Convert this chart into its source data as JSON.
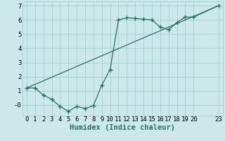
{
  "xlabel": "Humidex (Indice chaleur)",
  "bg_color": "#cce8e8",
  "grid_color": "#aacfcf",
  "line_color": "#2e6e62",
  "xlim": [
    -0.5,
    23.5
  ],
  "ylim": [
    -0.75,
    7.3
  ],
  "yticks": [
    0,
    1,
    2,
    3,
    4,
    5,
    6,
    7
  ],
  "ytick_labels": [
    "-0",
    "1",
    "2",
    "3",
    "4",
    "5",
    "6",
    "7"
  ],
  "xticks": [
    0,
    1,
    2,
    3,
    4,
    5,
    6,
    7,
    8,
    9,
    10,
    11,
    12,
    13,
    14,
    15,
    16,
    17,
    18,
    19,
    20,
    23
  ],
  "curve_x": [
    0,
    1,
    2,
    3,
    4,
    5,
    6,
    7,
    8,
    9,
    10,
    11,
    12,
    13,
    14,
    15,
    16,
    17,
    18,
    19,
    20,
    23
  ],
  "curve_y": [
    1.2,
    1.2,
    0.7,
    0.4,
    -0.1,
    -0.45,
    -0.1,
    -0.25,
    -0.05,
    1.4,
    2.5,
    6.0,
    6.15,
    6.1,
    6.05,
    6.0,
    5.5,
    5.3,
    5.8,
    6.2,
    6.2,
    7.0
  ],
  "line_x": [
    0,
    23
  ],
  "line_y": [
    1.2,
    7.0
  ],
  "font_size": 6.5,
  "xlabel_size": 7.5
}
